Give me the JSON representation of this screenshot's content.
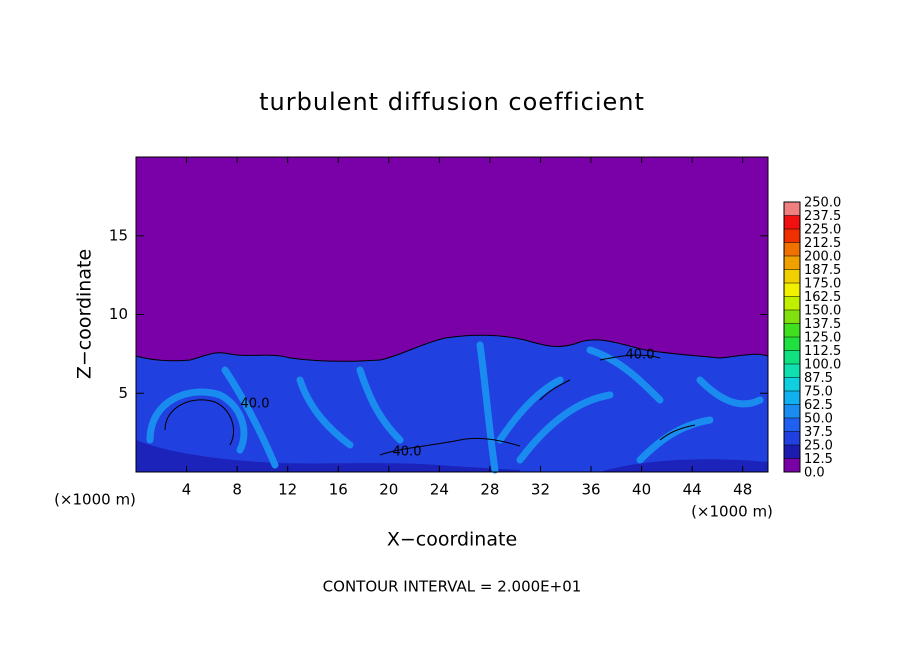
{
  "chart_data": {
    "type": "contour",
    "title": "turbulent diffusion coefficient",
    "xlabel": "X−coordinate",
    "ylabel": "Z−coordinate",
    "x_unit_left": "(×1000 m)",
    "x_unit_right": "(×1000 m)",
    "footer": "CONTOUR INTERVAL = 2.000E+01",
    "xlim": [
      0,
      50
    ],
    "xticks": [
      4,
      8,
      12,
      16,
      20,
      24,
      28,
      32,
      36,
      40,
      44,
      48
    ],
    "ylim": [
      0,
      20
    ],
    "yticks": [
      5,
      10,
      15
    ],
    "contour_labels": [
      "40.0",
      "40.0",
      "40.0"
    ],
    "colorbar": {
      "levels": [
        {
          "value": 0,
          "label": "0.0"
        },
        {
          "value": 12.5,
          "label": "12.5"
        },
        {
          "value": 25,
          "label": "25.0"
        },
        {
          "value": 37.5,
          "label": "37.5"
        },
        {
          "value": 50,
          "label": "50.0"
        },
        {
          "value": 62.5,
          "label": "62.5"
        },
        {
          "value": 75,
          "label": "75.0"
        },
        {
          "value": 87.5,
          "label": "87.5"
        },
        {
          "value": 100,
          "label": "100.0"
        },
        {
          "value": 112.5,
          "label": "112.5"
        },
        {
          "value": 125,
          "label": "125.0"
        },
        {
          "value": 137.5,
          "label": "137.5"
        },
        {
          "value": 150,
          "label": "150.0"
        },
        {
          "value": 162.5,
          "label": "162.5"
        },
        {
          "value": 175,
          "label": "175.0"
        },
        {
          "value": 187.5,
          "label": "187.5"
        },
        {
          "value": 200,
          "label": "200.0"
        },
        {
          "value": 212.5,
          "label": "212.5"
        },
        {
          "value": 225,
          "label": "225.0"
        },
        {
          "value": 237.5,
          "label": "237.5"
        },
        {
          "value": 250,
          "label": "250.0"
        }
      ],
      "colors": [
        "#7a00a8",
        "#1c1cb0",
        "#2040e0",
        "#2060f0",
        "#1a8cf0",
        "#10b0f0",
        "#10d0e0",
        "#10e0b0",
        "#10e080",
        "#20e040",
        "#40e020",
        "#80e010",
        "#c0f000",
        "#f0f000",
        "#f0d000",
        "#f0a000",
        "#f07000",
        "#f03000",
        "#f01010",
        "#f08080"
      ]
    }
  }
}
